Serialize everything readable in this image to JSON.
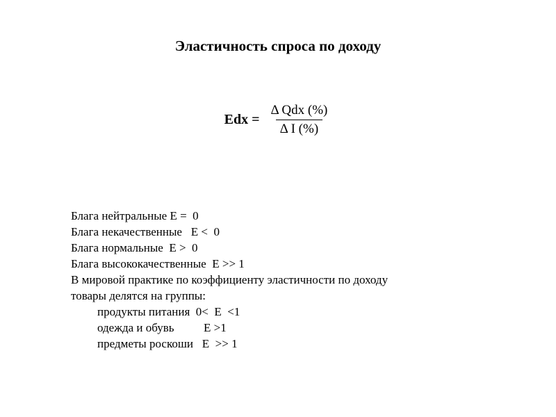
{
  "title": "Эластичность спроса по доходу",
  "formula": {
    "left": "Edx =",
    "numerator": "Δ Qdx (%)",
    "denominator": "Δ I (%)"
  },
  "lines": {
    "l1": "Блага нейтральные Е =  0",
    "l2": "Блага некачественные   Е <  0",
    "l3": "Блага нормальные  Е >  0",
    "l4": "Блага высококачественные  Е >> 1",
    "l5": "В мировой практике по коэффициенту эластичности по доходу",
    "l6": "товары делятся на группы:",
    "l7": "продукты питания  0<  Е  <1",
    "l8": "одежда и обувь          Е >1",
    "l9": "предметы роскоши   Е  >> 1"
  },
  "colors": {
    "background": "#ffffff",
    "text": "#000000"
  },
  "fontsize": {
    "title": 21,
    "formula": 20,
    "body": 17
  }
}
